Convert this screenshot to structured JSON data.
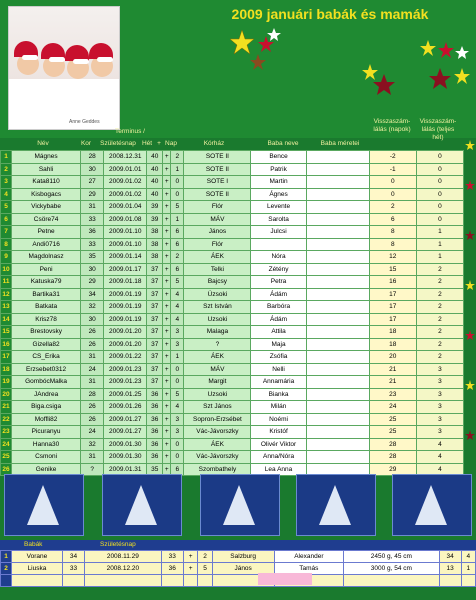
{
  "title": "2009 januári babák és mamák",
  "photo_caption": "Anne Geddes",
  "headers": {
    "nev": "Név",
    "kor": "Kor",
    "szul": "Születésnap",
    "termin": "Terminus /",
    "het": "Hét",
    "plus": "+",
    "nap": "Nap",
    "korhaz": "Kórház",
    "baba": "Baba neve",
    "meret": "Baba méretei",
    "v1": "Visszaszám-lálás (napok)",
    "v2": "Visszaszám-lálás (teljes hét)"
  },
  "rows": [
    {
      "n": "1",
      "nev": "Mágnes",
      "kor": "28",
      "szul": "2008.12.31",
      "het": "40",
      "nap": "2",
      "korhaz": "SOTE II",
      "baba": "Bence",
      "v1": "-2",
      "v2": "0"
    },
    {
      "n": "2",
      "nev": "Sahli",
      "kor": "30",
      "szul": "2009.01.01",
      "het": "40",
      "nap": "1",
      "korhaz": "SOTE II",
      "baba": "Patrik",
      "v1": "-1",
      "v2": "0"
    },
    {
      "n": "3",
      "nev": "Kata8110",
      "kor": "27",
      "szul": "2009.01.02",
      "het": "40",
      "nap": "0",
      "korhaz": "SOTE I",
      "baba": "Martin",
      "v1": "0",
      "v2": "0"
    },
    {
      "n": "4",
      "nev": "Kisbogacs",
      "kor": "29",
      "szul": "2009.01.02",
      "het": "40",
      "nap": "0",
      "korhaz": "SOTE II",
      "baba": "Ágnes",
      "v1": "0",
      "v2": "0"
    },
    {
      "n": "5",
      "nev": "Vickybabe",
      "kor": "31",
      "szul": "2009.01.04",
      "het": "39",
      "nap": "5",
      "korhaz": "Flór",
      "baba": "Levente",
      "v1": "2",
      "v2": "0"
    },
    {
      "n": "6",
      "nev": "Csöre74",
      "kor": "33",
      "szul": "2009.01.08",
      "het": "39",
      "nap": "1",
      "korhaz": "MÁV",
      "baba": "Sarolta",
      "v1": "6",
      "v2": "0"
    },
    {
      "n": "7",
      "nev": "Petne",
      "kor": "36",
      "szul": "2009.01.10",
      "het": "38",
      "nap": "6",
      "korhaz": "János",
      "baba": "Julcsi",
      "v1": "8",
      "v2": "1"
    },
    {
      "n": "8",
      "nev": "Andi0716",
      "kor": "33",
      "szul": "2009.01.10",
      "het": "38",
      "nap": "6",
      "korhaz": "Flór",
      "baba": "",
      "v1": "8",
      "v2": "1"
    },
    {
      "n": "9",
      "nev": "Magdolnasz",
      "kor": "35",
      "szul": "2009.01.14",
      "het": "38",
      "nap": "2",
      "korhaz": "ÁEK",
      "baba": "Nóra",
      "v1": "12",
      "v2": "1"
    },
    {
      "n": "10",
      "nev": "Peni",
      "kor": "30",
      "szul": "2009.01.17",
      "het": "37",
      "nap": "6",
      "korhaz": "Telki",
      "baba": "Zétény",
      "v1": "15",
      "v2": "2"
    },
    {
      "n": "11",
      "nev": "Katuska79",
      "kor": "29",
      "szul": "2009.01.18",
      "het": "37",
      "nap": "5",
      "korhaz": "Bajcsy",
      "baba": "Petra",
      "v1": "16",
      "v2": "2"
    },
    {
      "n": "12",
      "nev": "Bartika31",
      "kor": "34",
      "szul": "2009.01.19",
      "het": "37",
      "nap": "4",
      "korhaz": "Úzsoki",
      "baba": "Ádám",
      "v1": "17",
      "v2": "2"
    },
    {
      "n": "13",
      "nev": "Batkata",
      "kor": "32",
      "szul": "2009.01.19",
      "het": "37",
      "nap": "4",
      "korhaz": "Szt István",
      "baba": "Barbóra",
      "v1": "17",
      "v2": "2"
    },
    {
      "n": "14",
      "nev": "Krisz78",
      "kor": "30",
      "szul": "2009.01.19",
      "het": "37",
      "nap": "4",
      "korhaz": "Uzsoki",
      "baba": "Ádám",
      "v1": "17",
      "v2": "2"
    },
    {
      "n": "15",
      "nev": "Brestovsky",
      "kor": "26",
      "szul": "2009.01.20",
      "het": "37",
      "nap": "3",
      "korhaz": "Malaga",
      "baba": "Attila",
      "v1": "18",
      "v2": "2"
    },
    {
      "n": "16",
      "nev": "Gizella82",
      "kor": "26",
      "szul": "2009.01.20",
      "het": "37",
      "nap": "3",
      "korhaz": "?",
      "baba": "Maja",
      "v1": "18",
      "v2": "2"
    },
    {
      "n": "17",
      "nev": "CS_Erika",
      "kor": "31",
      "szul": "2009.01.22",
      "het": "37",
      "nap": "1",
      "korhaz": "ÁEK",
      "baba": "Zsófia",
      "v1": "20",
      "v2": "2"
    },
    {
      "n": "18",
      "nev": "Erzsebet0312",
      "kor": "24",
      "szul": "2009.01.23",
      "het": "37",
      "nap": "0",
      "korhaz": "MÁV",
      "baba": "Nelli",
      "v1": "21",
      "v2": "3"
    },
    {
      "n": "19",
      "nev": "GombócMalka",
      "kor": "31",
      "szul": "2009.01.23",
      "het": "37",
      "nap": "0",
      "korhaz": "Margit",
      "baba": "Annamária",
      "v1": "21",
      "v2": "3"
    },
    {
      "n": "20",
      "nev": "JAndrea",
      "kor": "28",
      "szul": "2009.01.25",
      "het": "36",
      "nap": "5",
      "korhaz": "Uzsoki",
      "baba": "Bianka",
      "v1": "23",
      "v2": "3"
    },
    {
      "n": "21",
      "nev": "Biga.csiga",
      "kor": "26",
      "szul": "2009.01.26",
      "het": "36",
      "nap": "4",
      "korhaz": "Szt János",
      "baba": "Milán",
      "v1": "24",
      "v2": "3"
    },
    {
      "n": "22",
      "nev": "Moffli82",
      "kor": "26",
      "szul": "2009.01.27",
      "het": "36",
      "nap": "3",
      "korhaz": "Sopron-Erzsébet",
      "baba": "Noémi",
      "v1": "25",
      "v2": "3"
    },
    {
      "n": "23",
      "nev": "Picuranyu",
      "kor": "24",
      "szul": "2009.01.27",
      "het": "36",
      "nap": "3",
      "korhaz": "Vác-Jávorszky",
      "baba": "Kristóf",
      "v1": "25",
      "v2": "3"
    },
    {
      "n": "24",
      "nev": "Hanna30",
      "kor": "32",
      "szul": "2009.01.30",
      "het": "36",
      "nap": "0",
      "korhaz": "ÁEK",
      "baba": "Olivér Viktor",
      "v1": "28",
      "v2": "4"
    },
    {
      "n": "25",
      "nev": "Csmoni",
      "kor": "31",
      "szul": "2009.01.30",
      "het": "36",
      "nap": "0",
      "korhaz": "Vác-Jávorszky",
      "baba": "Anna/Nóra",
      "v1": "28",
      "v2": "4"
    },
    {
      "n": "26",
      "nev": "Genike",
      "kor": "?",
      "szul": "2009.01.31",
      "het": "35",
      "nap": "6",
      "korhaz": "Szombathely",
      "baba": "Lea Anna",
      "v1": "29",
      "v2": "4"
    }
  ],
  "bottom": {
    "hdr_babak": "Babák",
    "hdr_szul": "Születésnap",
    "rows": [
      {
        "n": "1",
        "nev": "Vorane",
        "kor": "34",
        "szul": "2008.11.29",
        "het": "33",
        "nap": "2",
        "korhaz": "Salzburg",
        "baba": "Alexander",
        "meret": "2450 g, 45 cm",
        "v1": "34",
        "v2": "4"
      },
      {
        "n": "2",
        "nev": "Liuska",
        "kor": "33",
        "szul": "2008.12.20",
        "het": "36",
        "nap": "5",
        "korhaz": "János",
        "baba": "Tamás",
        "meret": "3000 g, 54 cm",
        "v1": "13",
        "v2": "1"
      }
    ]
  }
}
